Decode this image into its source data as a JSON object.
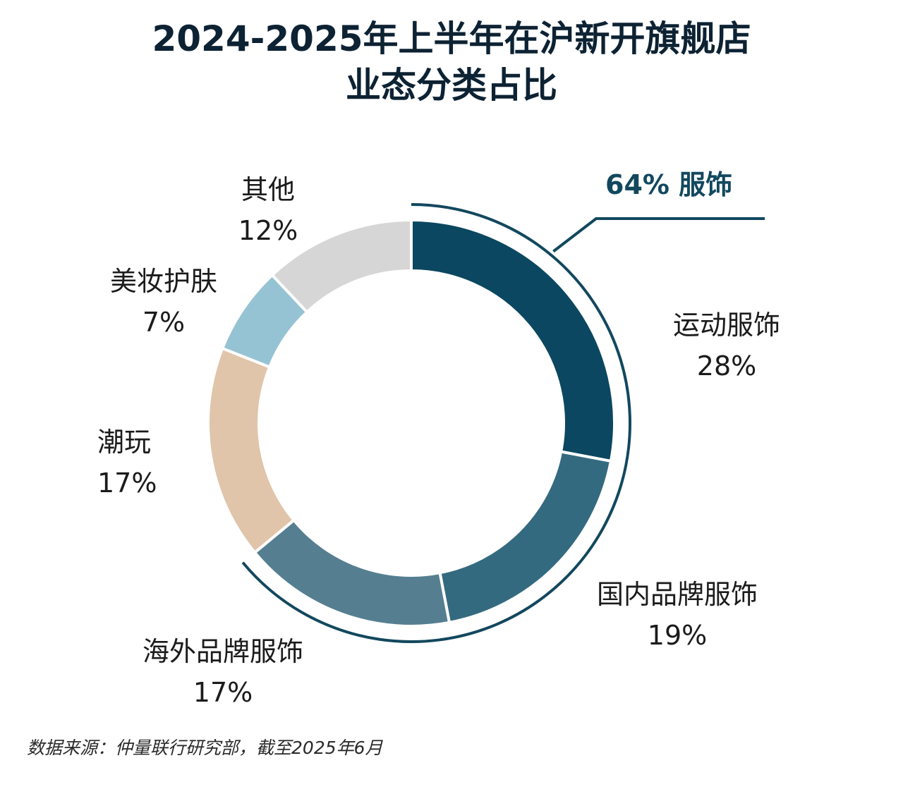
{
  "chart_data": {
    "type": "pie",
    "variant": "donut",
    "title_line1": "2024-2025年上半年在沪新开旗舰店",
    "title_line2": "业态分类占比",
    "slices": [
      {
        "label": "运动服饰",
        "value": 28,
        "value_text": "28%",
        "color": "#0b4760"
      },
      {
        "label": "国内品牌服饰",
        "value": 19,
        "value_text": "19%",
        "color": "#346a7f"
      },
      {
        "label": "海外品牌服饰",
        "value": 17,
        "value_text": "17%",
        "color": "#557f91"
      },
      {
        "label": "潮玩",
        "value": 17,
        "value_text": "17%",
        "color": "#e0c5aa"
      },
      {
        "label": "美妆护肤",
        "value": 7,
        "value_text": "7%",
        "color": "#96c3d4"
      },
      {
        "label": "其他",
        "value": 12,
        "value_text": "12%",
        "color": "#d6d6d6"
      }
    ],
    "group_annotation": {
      "text": "64%  服饰",
      "covers": [
        "运动服饰",
        "国内品牌服饰",
        "海外品牌服饰"
      ],
      "color": "#12485e"
    },
    "legend": "none (slice labels placed around the ring)"
  },
  "source": "数据来源：仲量联行研究部，截至2025年6月"
}
